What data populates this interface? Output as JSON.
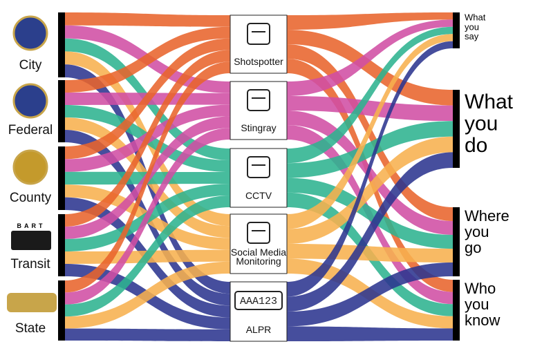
{
  "sources": [
    {
      "label": "City"
    },
    {
      "label": "Federal"
    },
    {
      "label": "County"
    },
    {
      "label": "Transit",
      "logo_text": "BART"
    },
    {
      "label": "State"
    }
  ],
  "technologies": [
    {
      "label": "Shotspotter"
    },
    {
      "label": "Stingray"
    },
    {
      "label": "CCTV"
    },
    {
      "label": "Social Media Monitoring"
    },
    {
      "label": "ALPR",
      "plate": "AAA123"
    }
  ],
  "outcomes": [
    {
      "label": "What you say"
    },
    {
      "label": "What you do"
    },
    {
      "label": "Where you go"
    },
    {
      "label": "Who you know"
    }
  ]
}
